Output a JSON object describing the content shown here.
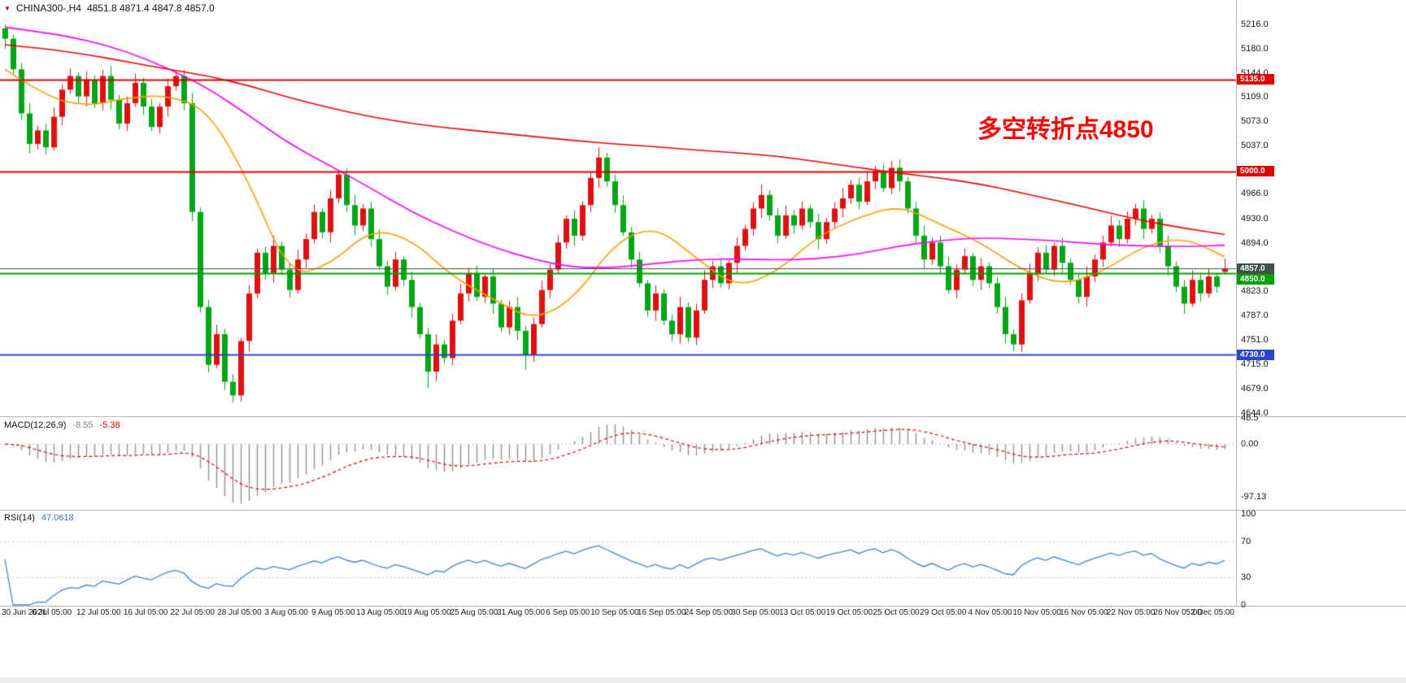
{
  "header": {
    "symbol": "CHINA300-,H4",
    "ohlc": "4851.8 4871.4 4847.8 4857.0",
    "marker_icon": "▼"
  },
  "annotation": {
    "text": "多空转折点4850",
    "color": "#ff0000"
  },
  "colors": {
    "up_candle": "#e01010",
    "down_candle": "#00a616",
    "ma_fast": "#ff9c00",
    "ma_mid": "#ff00ff",
    "ma_slow": "#f00000",
    "macd_hist": "#909090",
    "macd_signal": "#e00000",
    "rsi_line": "#4080d0",
    "axis_text": "#1a1a1a",
    "separator": "#b5b5b5"
  },
  "chart_data": {
    "type": "candlestick",
    "symbol": "CHINA300-",
    "timeframe": "H4",
    "current_ohlc": {
      "open": 4851.8,
      "high": 4871.4,
      "low": 4847.8,
      "close": 4857.0
    },
    "ylim_visible": [
      4639,
      5252
    ],
    "y_axis_ticks": [
      {
        "value": 5216.0,
        "label": "5216.0"
      },
      {
        "value": 5180.0,
        "label": "5180.0"
      },
      {
        "value": 5144.0,
        "label": "5144.0"
      },
      {
        "value": 5109.0,
        "label": "5109.0"
      },
      {
        "value": 5073.0,
        "label": "5073.0"
      },
      {
        "value": 5037.0,
        "label": "5037.0"
      },
      {
        "value": 4966.0,
        "label": "4966.0"
      },
      {
        "value": 4930.0,
        "label": "4930.0"
      },
      {
        "value": 4894.0,
        "label": "4894.0"
      },
      {
        "value": 4823.0,
        "label": "4823.0"
      },
      {
        "value": 4787.0,
        "label": "4787.0"
      },
      {
        "value": 4751.0,
        "label": "4751.0"
      },
      {
        "value": 4715.0,
        "label": "4715.0"
      },
      {
        "value": 4679.0,
        "label": "4679.0"
      },
      {
        "value": 4644.0,
        "label": "4644.0"
      }
    ],
    "x_labels": [
      "30 Jun 2021",
      "6 Jul 05:00",
      "12 Jul 05:00",
      "16 Jul 05:00",
      "22 Jul 05:00",
      "28 Jul 05:00",
      "3 Aug 05:00",
      "9 Aug 05:00",
      "13 Aug 05:00",
      "19 Aug 05:00",
      "25 Aug 05:00",
      "31 Aug 05:00",
      "6 Sep 05:00",
      "10 Sep 05:00",
      "16 Sep 05:00",
      "24 Sep 05:00",
      "30 Sep 05:00",
      "13 Oct 05:00",
      "19 Oct 05:00",
      "25 Oct 05:00",
      "29 Oct 05:00",
      "4 Nov 05:00",
      "10 Nov 05:00",
      "16 Nov 05:00",
      "22 Nov 05:00",
      "26 Nov 05:00",
      "2 Dec 05:00"
    ],
    "hlines": [
      {
        "value": 5135.0,
        "label": "5135.0",
        "color": "#e00000",
        "width": 2
      },
      {
        "value": 5000.0,
        "label": "5000.0",
        "color": "#e00000",
        "width": 2
      },
      {
        "value": 4857.0,
        "label": "4857.0",
        "color": "#3d544a",
        "width": 1,
        "style": "bid"
      },
      {
        "value": 4850.0,
        "label": "4850.0",
        "color": "#00a000",
        "width": 2
      },
      {
        "value": 4730.0,
        "label": "4730.0",
        "color": "#2c46c8",
        "width": 2
      }
    ],
    "overlays": [
      {
        "name": "fast-ma",
        "color": "#ff9c00",
        "step": 5,
        "values": [
          5150,
          5110,
          5095,
          5108,
          5112,
          5090,
          4985,
          4845,
          4862,
          4915,
          4900,
          4845,
          4812,
          4780,
          4812,
          4895,
          4920,
          4872,
          4828,
          4852,
          4905,
          4932,
          4950,
          4922,
          4895,
          4855,
          4832,
          4852,
          4890,
          4903,
          4874
        ]
      },
      {
        "name": "mid-ma",
        "color": "#ff00ff",
        "step": 5,
        "values": [
          5212,
          5204,
          5193,
          5176,
          5152,
          5122,
          5082,
          5040,
          5008,
          4975,
          4940,
          4912,
          4888,
          4870,
          4858,
          4858,
          4864,
          4870,
          4871,
          4869,
          4871,
          4878,
          4890,
          4898,
          4902,
          4900,
          4897,
          4892,
          4890,
          4889,
          4891
        ]
      },
      {
        "name": "slow-ma",
        "color": "#f00000",
        "step": 5,
        "values": [
          5186,
          5180,
          5172,
          5161,
          5150,
          5140,
          5126,
          5108,
          5093,
          5080,
          5070,
          5063,
          5057,
          5051,
          5045,
          5040,
          5036,
          5031,
          5027,
          5022,
          5014,
          5005,
          4997,
          4990,
          4981,
          4968,
          4955,
          4941,
          4927,
          4916,
          4907
        ]
      }
    ],
    "candles": [
      [
        5210,
        5216,
        5180,
        5195
      ],
      [
        5195,
        5201,
        5143,
        5150
      ],
      [
        5150,
        5159,
        5075,
        5085
      ],
      [
        5085,
        5100,
        5026,
        5040
      ],
      [
        5040,
        5067,
        5032,
        5060
      ],
      [
        5060,
        5070,
        5024,
        5035
      ],
      [
        5035,
        5094,
        5030,
        5080
      ],
      [
        5080,
        5128,
        5068,
        5120
      ],
      [
        5120,
        5151,
        5114,
        5140
      ],
      [
        5140,
        5145,
        5101,
        5110
      ],
      [
        5110,
        5147,
        5095,
        5135
      ],
      [
        5135,
        5141,
        5093,
        5100
      ],
      [
        5100,
        5149,
        5090,
        5140
      ],
      [
        5140,
        5155,
        5091,
        5105
      ],
      [
        5105,
        5112,
        5062,
        5070
      ],
      [
        5070,
        5110,
        5059,
        5100
      ],
      [
        5100,
        5144,
        5095,
        5130
      ],
      [
        5130,
        5138,
        5083,
        5095
      ],
      [
        5095,
        5106,
        5059,
        5065
      ],
      [
        5065,
        5100,
        5056,
        5095
      ],
      [
        5095,
        5137,
        5080,
        5125
      ],
      [
        5125,
        5146,
        5118,
        5140
      ],
      [
        5140,
        5149,
        5090,
        5100
      ],
      [
        5100,
        5115,
        4926,
        4940
      ],
      [
        4940,
        4947,
        4792,
        4800
      ],
      [
        4800,
        4810,
        4704,
        4715
      ],
      [
        4715,
        4774,
        4710,
        4760
      ],
      [
        4760,
        4768,
        4678,
        4690
      ],
      [
        4690,
        4701,
        4660,
        4670
      ],
      [
        4670,
        4755,
        4661,
        4750
      ],
      [
        4750,
        4832,
        4735,
        4820
      ],
      [
        4820,
        4886,
        4813,
        4880
      ],
      [
        4880,
        4889,
        4840,
        4850
      ],
      [
        4850,
        4905,
        4836,
        4890
      ],
      [
        4890,
        4897,
        4847,
        4855
      ],
      [
        4855,
        4865,
        4814,
        4825
      ],
      [
        4825,
        4884,
        4820,
        4870
      ],
      [
        4870,
        4908,
        4858,
        4900
      ],
      [
        4900,
        4951,
        4894,
        4940
      ],
      [
        4940,
        4945,
        4901,
        4910
      ],
      [
        4910,
        4972,
        4895,
        4960
      ],
      [
        4960,
        5002,
        4953,
        4995
      ],
      [
        4995,
        5004,
        4940,
        4950
      ],
      [
        4950,
        4965,
        4906,
        4920
      ],
      [
        4920,
        4952,
        4912,
        4945
      ],
      [
        4945,
        4955,
        4889,
        4900
      ],
      [
        4900,
        4914,
        4855,
        4860
      ],
      [
        4860,
        4868,
        4818,
        4830
      ],
      [
        4830,
        4881,
        4824,
        4870
      ],
      [
        4870,
        4875,
        4831,
        4840
      ],
      [
        4840,
        4852,
        4785,
        4800
      ],
      [
        4800,
        4806,
        4753,
        4760
      ],
      [
        4760,
        4769,
        4680,
        4705
      ],
      [
        4705,
        4760,
        4691,
        4745
      ],
      [
        4745,
        4752,
        4717,
        4725
      ],
      [
        4725,
        4790,
        4714,
        4780
      ],
      [
        4780,
        4834,
        4775,
        4820
      ],
      [
        4820,
        4858,
        4808,
        4850
      ],
      [
        4850,
        4861,
        4809,
        4815
      ],
      [
        4815,
        4850,
        4806,
        4845
      ],
      [
        4845,
        4857,
        4790,
        4805
      ],
      [
        4805,
        4811,
        4763,
        4770
      ],
      [
        4770,
        4809,
        4760,
        4800
      ],
      [
        4800,
        4815,
        4751,
        4765
      ],
      [
        4765,
        4772,
        4708,
        4730
      ],
      [
        4730,
        4785,
        4719,
        4775
      ],
      [
        4775,
        4839,
        4770,
        4825
      ],
      [
        4825,
        4863,
        4813,
        4855
      ],
      [
        4855,
        4906,
        4849,
        4895
      ],
      [
        4895,
        4935,
        4886,
        4930
      ],
      [
        4930,
        4942,
        4890,
        4905
      ],
      [
        4905,
        4956,
        4898,
        4950
      ],
      [
        4950,
        4999,
        4940,
        4990
      ],
      [
        4990,
        5035,
        4976,
        5020
      ],
      [
        5020,
        5027,
        4977,
        4985
      ],
      [
        4985,
        4995,
        4939,
        4950
      ],
      [
        4950,
        4964,
        4905,
        4910
      ],
      [
        4910,
        4918,
        4858,
        4870
      ],
      [
        4870,
        4881,
        4829,
        4835
      ],
      [
        4835,
        4840,
        4786,
        4795
      ],
      [
        4795,
        4832,
        4780,
        4820
      ],
      [
        4820,
        4826,
        4773,
        4780
      ],
      [
        4780,
        4789,
        4750,
        4760
      ],
      [
        4760,
        4815,
        4746,
        4800
      ],
      [
        4800,
        4807,
        4748,
        4755
      ],
      [
        4755,
        4805,
        4744,
        4795
      ],
      [
        4795,
        4854,
        4790,
        4840
      ],
      [
        4840,
        4868,
        4828,
        4860
      ],
      [
        4860,
        4871,
        4829,
        4835
      ],
      [
        4835,
        4870,
        4826,
        4865
      ],
      [
        4865,
        4902,
        4850,
        4890
      ],
      [
        4890,
        4921,
        4883,
        4915
      ],
      [
        4915,
        4954,
        4905,
        4945
      ],
      [
        4945,
        4980,
        4931,
        4965
      ],
      [
        4965,
        4972,
        4927,
        4935
      ],
      [
        4935,
        4945,
        4894,
        4905
      ],
      [
        4905,
        4949,
        4900,
        4935
      ],
      [
        4935,
        4943,
        4908,
        4920
      ],
      [
        4920,
        4956,
        4914,
        4945
      ],
      [
        4945,
        4950,
        4916,
        4925
      ],
      [
        4925,
        4937,
        4885,
        4900
      ],
      [
        4900,
        4931,
        4893,
        4925
      ],
      [
        4925,
        4954,
        4915,
        4945
      ],
      [
        4945,
        4975,
        4931,
        4960
      ],
      [
        4960,
        4987,
        4952,
        4980
      ],
      [
        4980,
        4990,
        4944,
        4955
      ],
      [
        4955,
        4999,
        4950,
        4985
      ],
      [
        4985,
        5008,
        4973,
        5000
      ],
      [
        5000,
        5011,
        4969,
        4975
      ],
      [
        4975,
        5015,
        4966,
        5005
      ],
      [
        5005,
        5017,
        4970,
        4985
      ],
      [
        4985,
        4991,
        4938,
        4945
      ],
      [
        4945,
        4954,
        4895,
        4905
      ],
      [
        4905,
        4920,
        4856,
        4870
      ],
      [
        4870,
        4902,
        4862,
        4895
      ],
      [
        4895,
        4905,
        4849,
        4860
      ],
      [
        4860,
        4874,
        4820,
        4825
      ],
      [
        4825,
        4863,
        4813,
        4855
      ],
      [
        4855,
        4886,
        4849,
        4875
      ],
      [
        4875,
        4880,
        4831,
        4840
      ],
      [
        4840,
        4872,
        4825,
        4860
      ],
      [
        4860,
        4866,
        4828,
        4835
      ],
      [
        4835,
        4844,
        4790,
        4800
      ],
      [
        4800,
        4815,
        4746,
        4760
      ],
      [
        4760,
        4767,
        4735,
        4745
      ],
      [
        4745,
        4820,
        4734,
        4810
      ],
      [
        4810,
        4864,
        4805,
        4850
      ],
      [
        4850,
        4888,
        4838,
        4880
      ],
      [
        4880,
        4891,
        4849,
        4855
      ],
      [
        4855,
        4895,
        4846,
        4890
      ],
      [
        4890,
        4902,
        4850,
        4865
      ],
      [
        4865,
        4871,
        4833,
        4840
      ],
      [
        4840,
        4849,
        4805,
        4815
      ],
      [
        4815,
        4860,
        4801,
        4845
      ],
      [
        4845,
        4877,
        4837,
        4870
      ],
      [
        4870,
        4905,
        4859,
        4895
      ],
      [
        4895,
        4934,
        4890,
        4920
      ],
      [
        4920,
        4928,
        4888,
        4900
      ],
      [
        4900,
        4941,
        4894,
        4930
      ],
      [
        4930,
        4952,
        4921,
        4945
      ],
      [
        4945,
        4957,
        4900,
        4915
      ],
      [
        4915,
        4936,
        4908,
        4930
      ],
      [
        4930,
        4939,
        4880,
        4890
      ],
      [
        4890,
        4905,
        4846,
        4860
      ],
      [
        4860,
        4867,
        4822,
        4830
      ],
      [
        4830,
        4840,
        4790,
        4805
      ],
      [
        4805,
        4854,
        4800,
        4840
      ],
      [
        4840,
        4848,
        4808,
        4820
      ],
      [
        4820,
        4856,
        4814,
        4845
      ],
      [
        4845,
        4850,
        4821,
        4830
      ],
      [
        4851.8,
        4871.4,
        4847.8,
        4857.0
      ]
    ]
  },
  "indicators": {
    "macd": {
      "title": "MACD(12,26,9)",
      "value": "-8.55",
      "signal_value": "-5.38",
      "params": [
        12,
        26,
        9
      ],
      "ticks": [
        {
          "value": 48.5,
          "label": "48.5"
        },
        {
          "value": 0,
          "label": "0.00"
        },
        {
          "value": -97.13,
          "label": "-97.13"
        }
      ]
    },
    "rsi": {
      "title": "RSI(14)",
      "value": "47.0618",
      "period": 14,
      "levels": [
        70,
        30
      ],
      "ticks": [
        {
          "value": 100,
          "label": "100"
        },
        {
          "value": 70,
          "label": "70"
        },
        {
          "value": 30,
          "label": "30"
        },
        {
          "value": 0,
          "label": "0"
        }
      ]
    }
  }
}
